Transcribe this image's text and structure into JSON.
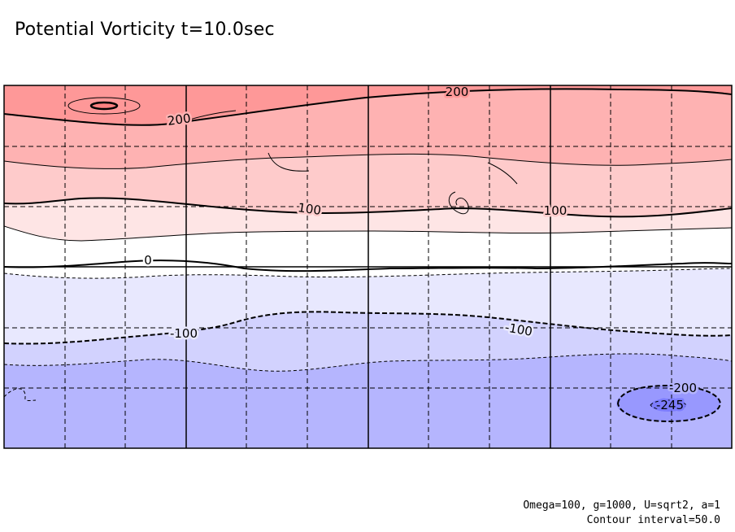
{
  "title": "Potential Vorticity t=10.0sec",
  "footnote": {
    "params": "Omega=100, g=1000, U=sqrt2, a=1",
    "interval": "Contour interval=50.0"
  },
  "chart_data": {
    "type": "contour",
    "title": "Potential Vorticity t=10.0sec",
    "contour_interval": 50.0,
    "grid": true,
    "levels": [
      {
        "value": 250,
        "fill": "#fe9898"
      },
      {
        "value": 200,
        "fill": "#feb2b2"
      },
      {
        "value": 150,
        "fill": "#fecbcb"
      },
      {
        "value": 100,
        "fill": "#fee5e5"
      },
      {
        "value": 50,
        "fill": "#ffffff"
      },
      {
        "value": 0,
        "fill": "#ffffff"
      },
      {
        "value": -50,
        "fill": "#e8e8fe"
      },
      {
        "value": -100,
        "fill": "#d2d2fe"
      },
      {
        "value": -150,
        "fill": "#b5b5fe"
      },
      {
        "value": -200,
        "fill": "#9898fe"
      },
      {
        "value": -250,
        "fill": "#7c7cfe"
      }
    ],
    "labels": [
      {
        "text": "200",
        "level": 200
      },
      {
        "text": "200",
        "level": 200
      },
      {
        "text": "100",
        "level": 100
      },
      {
        "text": "100",
        "level": 100
      },
      {
        "text": "0",
        "level": 0
      },
      {
        "text": "-100",
        "level": -100
      },
      {
        "text": "-100",
        "level": -100
      },
      {
        "text": "-200",
        "level": -200
      },
      {
        "text": "-245",
        "level": -245
      }
    ]
  }
}
